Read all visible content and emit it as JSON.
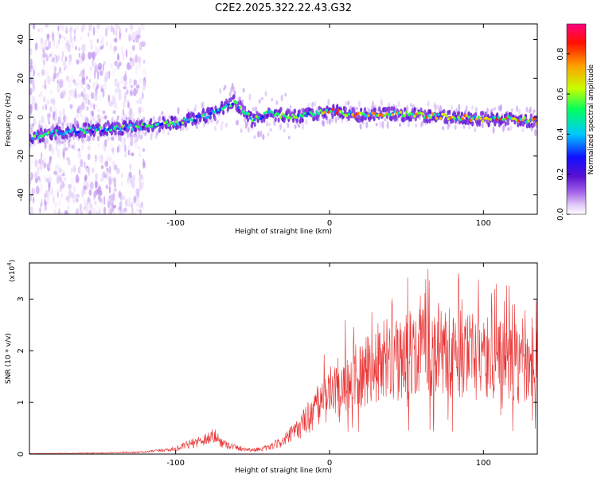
{
  "title": "C2E2.2025.322.22.43.G32",
  "chart_data": [
    {
      "type": "heatmap",
      "name": "spectrogram",
      "xlabel": "Height of straight line (km)",
      "ylabel": "Frequency (Hz)",
      "xlim": [
        -195,
        135
      ],
      "ylim": [
        -50,
        48
      ],
      "xticks": [
        -100,
        0,
        100
      ],
      "yticks": [
        -40,
        -20,
        0,
        20,
        40
      ],
      "colorbar": {
        "label": "Normalized spectral amplitude",
        "range": [
          0,
          0.95
        ],
        "ticks": [
          0.0,
          0.2,
          0.4,
          0.6,
          0.8
        ],
        "colormap": [
          "#ffffff",
          "#e0c8f8",
          "#a060e8",
          "#5a10d0",
          "#1010ff",
          "#00c8ff",
          "#00ff60",
          "#c8ff00",
          "#ffa000",
          "#ff1000",
          "#ff0080"
        ]
      },
      "ridge": {
        "x": [
          -195,
          -175,
          -150,
          -125,
          -100,
          -85,
          -75,
          -68,
          -62,
          -55,
          -50,
          -45,
          -40,
          -30,
          -20,
          -10,
          0,
          20,
          40,
          60,
          80,
          100,
          120,
          135
        ],
        "frequency_hz": [
          -10,
          -8,
          -6,
          -5,
          -3,
          0,
          2,
          5,
          8,
          3,
          -2,
          0,
          2,
          1,
          0,
          2,
          3,
          1,
          2,
          1,
          0,
          -1,
          -1,
          -2
        ]
      }
    },
    {
      "type": "line",
      "name": "snr",
      "xlabel": "Height of straight line (km)",
      "ylabel": "SNR (10 * v/v)",
      "multiplier": "(x10^4)",
      "multiplier_base": "(x10",
      "multiplier_exp": "4",
      "multiplier_close": ")",
      "color": "#e83030",
      "xlim": [
        -195,
        135
      ],
      "ylim": [
        0,
        3.7
      ],
      "xticks": [
        -100,
        0,
        100
      ],
      "yticks": [
        0,
        1,
        2,
        3
      ],
      "trend": {
        "x": [
          -195,
          -150,
          -120,
          -100,
          -90,
          -80,
          -75,
          -70,
          -60,
          -50,
          -40,
          -30,
          -20,
          -10,
          -5,
          0,
          10,
          20,
          30,
          40,
          50,
          60,
          70,
          80,
          90,
          100,
          110,
          120,
          130,
          135
        ],
        "y": [
          0.01,
          0.02,
          0.04,
          0.1,
          0.2,
          0.3,
          0.35,
          0.22,
          0.12,
          0.08,
          0.12,
          0.25,
          0.5,
          0.85,
          1.0,
          1.15,
          1.4,
          1.6,
          1.75,
          1.85,
          1.9,
          1.95,
          1.95,
          1.95,
          1.9,
          1.85,
          1.8,
          1.75,
          1.7,
          1.75
        ]
      }
    }
  ]
}
